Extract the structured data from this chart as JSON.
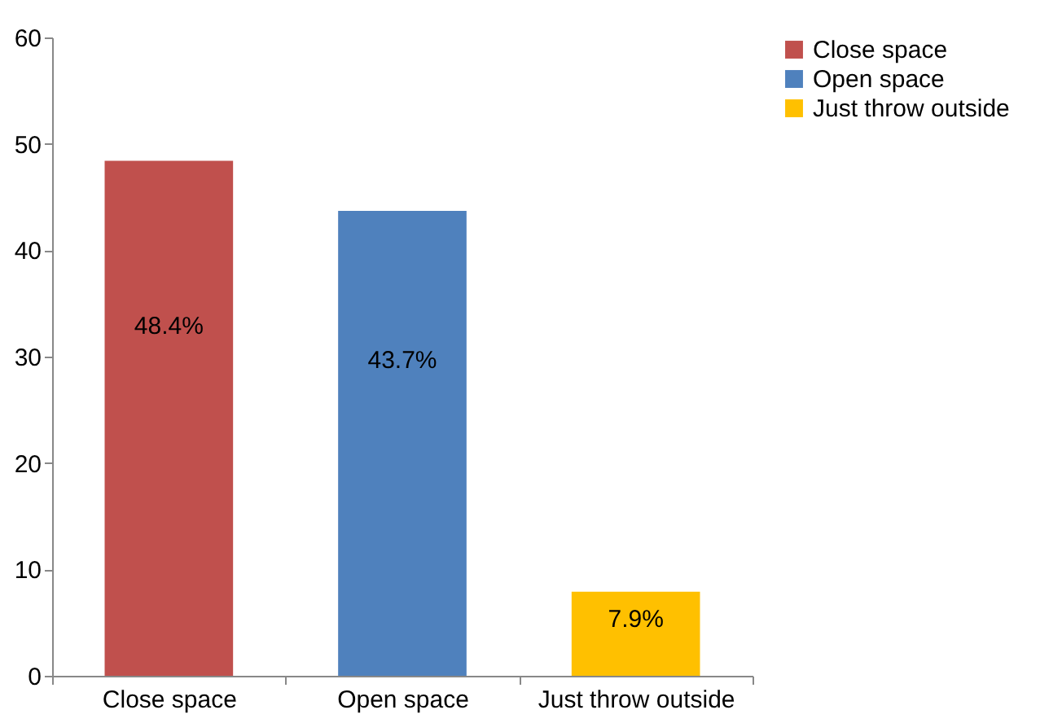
{
  "chart_data": {
    "type": "bar",
    "categories": [
      "Close space",
      "Open space",
      "Just throw outside"
    ],
    "series": [
      {
        "name": "Close space",
        "color": "#c0504d",
        "values": [
          48.4,
          null,
          null
        ],
        "value_labels": [
          "48.4%",
          null,
          null
        ]
      },
      {
        "name": "Open space",
        "color": "#4f81bd",
        "values": [
          null,
          43.7,
          null
        ],
        "value_labels": [
          null,
          "43.7%",
          null
        ]
      },
      {
        "name": "Just throw outside",
        "color": "#ffc000",
        "values": [
          null,
          null,
          7.9
        ],
        "value_labels": [
          null,
          null,
          "7.9%"
        ]
      }
    ],
    "ylim": [
      0,
      60
    ],
    "yticks": [
      0,
      10,
      20,
      30,
      40,
      50,
      60
    ],
    "legend": "right",
    "grid": false
  }
}
